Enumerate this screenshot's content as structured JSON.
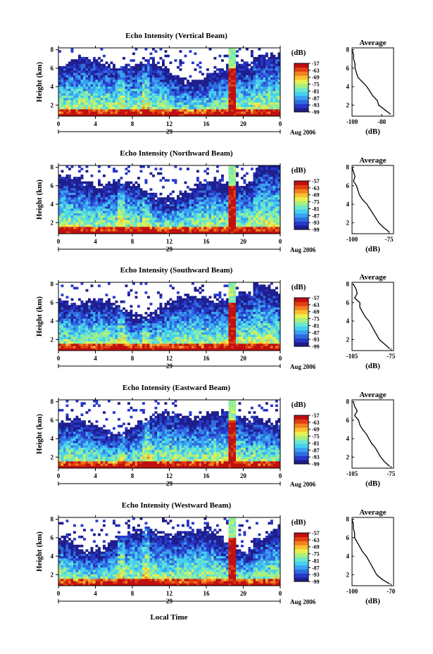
{
  "figure": {
    "x_axis_label": "Local Time",
    "date_label": "Aug 2006",
    "day_label": "29",
    "x_ticks": [
      "0",
      "4",
      "8",
      "12",
      "16",
      "20",
      "0"
    ],
    "y_label": "Height (km)",
    "y_ticks": [
      "2",
      "4",
      "6",
      "8"
    ],
    "colorbar_unit": "(dB)",
    "colorbar_ticks": [
      "-57",
      "-63",
      "-69",
      "-75",
      "-81",
      "-87",
      "-93",
      "-99"
    ],
    "colors": [
      "#1e1e8c",
      "#2838c8",
      "#2f6ce0",
      "#3aa0f0",
      "#46d0f0",
      "#70e8c8",
      "#a8f080",
      "#e8f050",
      "#f8c030",
      "#f08020",
      "#e04010",
      "#c01010"
    ]
  },
  "chart_data": [
    {
      "type": "heatmap",
      "title": "Echo Intensity (Vertical Beam)",
      "xlabel": "",
      "ylabel": "Height (km)",
      "xlim": [
        0,
        24
      ],
      "ylim": [
        0.8,
        8.2
      ],
      "colorbar_range": [
        -99,
        -57
      ],
      "avg_profile": {
        "title": "Average",
        "xlabel": "(dB)",
        "x_ticks": [
          "-100",
          "-80"
        ],
        "xlim": [
          -100,
          -72
        ],
        "heights": [
          8,
          7.5,
          7,
          6.5,
          6,
          5.5,
          5,
          4.5,
          4,
          3.5,
          3,
          2.5,
          2,
          1.5,
          1
        ],
        "values": [
          -100,
          -99,
          -99,
          -98,
          -98,
          -97,
          -96,
          -93,
          -90,
          -88,
          -86,
          -83,
          -82,
          -78,
          -74
        ]
      }
    },
    {
      "type": "heatmap",
      "title": "Echo Intensity (Northward Beam)",
      "xlabel": "",
      "ylabel": "Height (km)",
      "xlim": [
        0,
        24
      ],
      "ylim": [
        0.8,
        8.2
      ],
      "colorbar_range": [
        -99,
        -57
      ],
      "avg_profile": {
        "title": "Average",
        "xlabel": "(dB)",
        "x_ticks": [
          "-100",
          "-75"
        ],
        "xlim": [
          -100,
          -72
        ],
        "heights": [
          8,
          7.5,
          7,
          6.5,
          6,
          5.5,
          5,
          4.5,
          4,
          3.5,
          3,
          2.5,
          2,
          1.5,
          1
        ],
        "values": [
          -100,
          -99,
          -98,
          -99,
          -97,
          -96,
          -95,
          -93,
          -90,
          -88,
          -86,
          -84,
          -82,
          -79,
          -75
        ]
      }
    },
    {
      "type": "heatmap",
      "title": "Echo Intensity (Southward Beam)",
      "xlabel": "",
      "ylabel": "Height (km)",
      "xlim": [
        0,
        24
      ],
      "ylim": [
        0.8,
        8.2
      ],
      "colorbar_range": [
        -99,
        -57
      ],
      "avg_profile": {
        "title": "Average",
        "xlabel": "(dB)",
        "x_ticks": [
          "-105",
          "-75"
        ],
        "xlim": [
          -105,
          -73
        ],
        "heights": [
          8,
          7.5,
          7,
          6.5,
          6,
          5.5,
          5,
          4.5,
          4,
          3.5,
          3,
          2.5,
          2,
          1.5,
          1
        ],
        "values": [
          -104,
          -102,
          -101,
          -103,
          -99,
          -99,
          -97,
          -95,
          -92,
          -90,
          -88,
          -86,
          -84,
          -80,
          -76
        ]
      }
    },
    {
      "type": "heatmap",
      "title": "Echo Intensity (Eastward Beam)",
      "xlabel": "",
      "ylabel": "Height (km)",
      "xlim": [
        0,
        24
      ],
      "ylim": [
        0.8,
        8.2
      ],
      "colorbar_range": [
        -99,
        -57
      ],
      "avg_profile": {
        "title": "Average",
        "xlabel": "(dB)",
        "x_ticks": [
          "-105",
          "-75"
        ],
        "xlim": [
          -105,
          -73
        ],
        "heights": [
          8,
          7.5,
          7,
          6.5,
          6,
          5.5,
          5,
          4.5,
          4,
          3.5,
          3,
          2.5,
          2,
          1.5,
          1
        ],
        "values": [
          -104,
          -103,
          -101,
          -103,
          -100,
          -99,
          -97,
          -94,
          -92,
          -90,
          -87,
          -85,
          -83,
          -80,
          -76
        ]
      }
    },
    {
      "type": "heatmap",
      "title": "Echo Intensity (Westward Beam)",
      "xlabel": "",
      "ylabel": "Height (km)",
      "xlim": [
        0,
        24
      ],
      "ylim": [
        0.8,
        8.2
      ],
      "colorbar_range": [
        -99,
        -57
      ],
      "avg_profile": {
        "title": "Average",
        "xlabel": "(dB)",
        "x_ticks": [
          "-100",
          "-70"
        ],
        "xlim": [
          -100,
          -68
        ],
        "heights": [
          8,
          7.5,
          7,
          6.5,
          6,
          5.5,
          5,
          4.5,
          4,
          3.5,
          3,
          2.5,
          2,
          1.5,
          1
        ],
        "values": [
          -100,
          -99,
          -99,
          -98,
          -98,
          -96,
          -94,
          -92,
          -89,
          -87,
          -85,
          -83,
          -81,
          -77,
          -71
        ]
      }
    }
  ]
}
